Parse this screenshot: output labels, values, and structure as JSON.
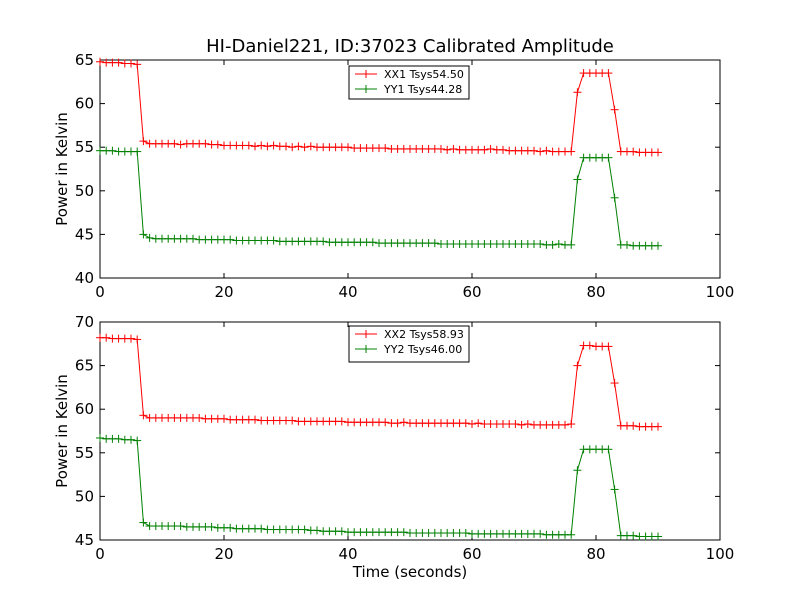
{
  "title": "HI-Daniel221, ID:37023 Calibrated Amplitude",
  "chart_data": [
    {
      "type": "line",
      "ylabel": "Power in Kelvin",
      "xlim": [
        0,
        100
      ],
      "ylim": [
        40,
        65
      ],
      "xticks": [
        0,
        20,
        40,
        60,
        80,
        100
      ],
      "yticks": [
        40,
        45,
        50,
        55,
        60,
        65
      ],
      "legend_position": "upper center",
      "series": [
        {
          "name": "XX1 Tsys54.50",
          "color": "#ff0000",
          "x": [
            0,
            1,
            2,
            3,
            4,
            5,
            6,
            7,
            8,
            9,
            10,
            11,
            12,
            13,
            14,
            15,
            16,
            17,
            18,
            19,
            20,
            21,
            22,
            23,
            24,
            25,
            26,
            27,
            28,
            29,
            30,
            31,
            32,
            33,
            34,
            35,
            36,
            37,
            38,
            39,
            40,
            41,
            42,
            43,
            44,
            45,
            46,
            47,
            48,
            49,
            50,
            51,
            52,
            53,
            54,
            55,
            56,
            57,
            58,
            59,
            60,
            61,
            62,
            63,
            64,
            65,
            66,
            67,
            68,
            69,
            70,
            71,
            72,
            73,
            74,
            75,
            76,
            77,
            78,
            79,
            80,
            81,
            82,
            83,
            84,
            85,
            86,
            87,
            88,
            89,
            90
          ],
          "y": [
            64.8,
            64.7,
            64.7,
            64.7,
            64.6,
            64.6,
            64.5,
            55.7,
            55.4,
            55.4,
            55.4,
            55.4,
            55.4,
            55.3,
            55.4,
            55.4,
            55.4,
            55.4,
            55.3,
            55.3,
            55.2,
            55.2,
            55.2,
            55.2,
            55.2,
            55.1,
            55.2,
            55.1,
            55.2,
            55.1,
            55.1,
            55.0,
            55.1,
            55.0,
            55.1,
            55.0,
            55.0,
            55.0,
            55.0,
            55.0,
            55.0,
            54.9,
            54.9,
            54.9,
            54.9,
            54.9,
            54.9,
            54.8,
            54.8,
            54.8,
            54.8,
            54.8,
            54.8,
            54.8,
            54.8,
            54.8,
            54.7,
            54.8,
            54.7,
            54.7,
            54.7,
            54.7,
            54.7,
            54.8,
            54.7,
            54.7,
            54.6,
            54.6,
            54.6,
            54.6,
            54.6,
            54.5,
            54.6,
            54.5,
            54.5,
            54.5,
            54.5,
            61.3,
            63.5,
            63.5,
            63.5,
            63.5,
            63.5,
            59.3,
            54.5,
            54.5,
            54.5,
            54.4,
            54.4,
            54.4,
            54.4
          ]
        },
        {
          "name": "YY1 Tsys44.28",
          "color": "#008000",
          "x": [
            0,
            1,
            2,
            3,
            4,
            5,
            6,
            7,
            8,
            9,
            10,
            11,
            12,
            13,
            14,
            15,
            16,
            17,
            18,
            19,
            20,
            21,
            22,
            23,
            24,
            25,
            26,
            27,
            28,
            29,
            30,
            31,
            32,
            33,
            34,
            35,
            36,
            37,
            38,
            39,
            40,
            41,
            42,
            43,
            44,
            45,
            46,
            47,
            48,
            49,
            50,
            51,
            52,
            53,
            54,
            55,
            56,
            57,
            58,
            59,
            60,
            61,
            62,
            63,
            64,
            65,
            66,
            67,
            68,
            69,
            70,
            71,
            72,
            73,
            74,
            75,
            76,
            77,
            78,
            79,
            80,
            81,
            82,
            83,
            84,
            85,
            86,
            87,
            88,
            89,
            90
          ],
          "y": [
            54.6,
            54.6,
            54.6,
            54.5,
            54.5,
            54.5,
            54.5,
            45.0,
            44.6,
            44.5,
            44.5,
            44.5,
            44.5,
            44.5,
            44.5,
            44.5,
            44.4,
            44.4,
            44.4,
            44.4,
            44.4,
            44.4,
            44.3,
            44.3,
            44.3,
            44.3,
            44.3,
            44.3,
            44.3,
            44.2,
            44.2,
            44.2,
            44.2,
            44.2,
            44.2,
            44.2,
            44.2,
            44.1,
            44.1,
            44.1,
            44.1,
            44.1,
            44.1,
            44.1,
            44.1,
            44.0,
            44.0,
            44.0,
            44.0,
            44.0,
            44.0,
            44.0,
            44.0,
            44.0,
            44.0,
            43.9,
            43.9,
            43.9,
            43.9,
            43.9,
            43.9,
            43.9,
            43.9,
            43.9,
            43.9,
            43.9,
            43.9,
            43.9,
            43.9,
            43.9,
            43.9,
            43.9,
            43.8,
            43.8,
            43.9,
            43.8,
            43.8,
            51.3,
            53.8,
            53.8,
            53.8,
            53.8,
            53.8,
            49.2,
            43.8,
            43.8,
            43.7,
            43.7,
            43.7,
            43.7,
            43.7
          ]
        }
      ]
    },
    {
      "type": "line",
      "xlabel": "Time (seconds)",
      "ylabel": "Power in Kelvin",
      "xlim": [
        0,
        100
      ],
      "ylim": [
        45,
        70
      ],
      "xticks": [
        0,
        20,
        40,
        60,
        80,
        100
      ],
      "yticks": [
        45,
        50,
        55,
        60,
        65,
        70
      ],
      "legend_position": "upper center",
      "series": [
        {
          "name": "XX2 Tsys58.93",
          "color": "#ff0000",
          "x": [
            0,
            1,
            2,
            3,
            4,
            5,
            6,
            7,
            8,
            9,
            10,
            11,
            12,
            13,
            14,
            15,
            16,
            17,
            18,
            19,
            20,
            21,
            22,
            23,
            24,
            25,
            26,
            27,
            28,
            29,
            30,
            31,
            32,
            33,
            34,
            35,
            36,
            37,
            38,
            39,
            40,
            41,
            42,
            43,
            44,
            45,
            46,
            47,
            48,
            49,
            50,
            51,
            52,
            53,
            54,
            55,
            56,
            57,
            58,
            59,
            60,
            61,
            62,
            63,
            64,
            65,
            66,
            67,
            68,
            69,
            70,
            71,
            72,
            73,
            74,
            75,
            76,
            77,
            78,
            79,
            80,
            81,
            82,
            83,
            84,
            85,
            86,
            87,
            88,
            89,
            90
          ],
          "y": [
            68.2,
            68.2,
            68.1,
            68.1,
            68.1,
            68.1,
            68.0,
            59.3,
            59.0,
            59.0,
            59.0,
            59.0,
            59.0,
            59.0,
            59.0,
            59.0,
            59.0,
            58.9,
            58.9,
            58.9,
            58.9,
            58.8,
            58.8,
            58.8,
            58.8,
            58.8,
            58.7,
            58.7,
            58.7,
            58.7,
            58.7,
            58.7,
            58.6,
            58.6,
            58.6,
            58.6,
            58.6,
            58.6,
            58.6,
            58.6,
            58.5,
            58.5,
            58.5,
            58.5,
            58.5,
            58.5,
            58.5,
            58.4,
            58.4,
            58.5,
            58.4,
            58.4,
            58.4,
            58.4,
            58.4,
            58.4,
            58.4,
            58.4,
            58.4,
            58.4,
            58.3,
            58.4,
            58.3,
            58.3,
            58.3,
            58.3,
            58.3,
            58.3,
            58.2,
            58.3,
            58.2,
            58.2,
            58.2,
            58.2,
            58.2,
            58.2,
            58.3,
            65.0,
            67.3,
            67.3,
            67.2,
            67.2,
            67.2,
            63.0,
            58.1,
            58.1,
            58.1,
            58.0,
            58.0,
            58.0,
            58.0
          ]
        },
        {
          "name": "YY2 Tsys46.00",
          "color": "#008000",
          "x": [
            0,
            1,
            2,
            3,
            4,
            5,
            6,
            7,
            8,
            9,
            10,
            11,
            12,
            13,
            14,
            15,
            16,
            17,
            18,
            19,
            20,
            21,
            22,
            23,
            24,
            25,
            26,
            27,
            28,
            29,
            30,
            31,
            32,
            33,
            34,
            35,
            36,
            37,
            38,
            39,
            40,
            41,
            42,
            43,
            44,
            45,
            46,
            47,
            48,
            49,
            50,
            51,
            52,
            53,
            54,
            55,
            56,
            57,
            58,
            59,
            60,
            61,
            62,
            63,
            64,
            65,
            66,
            67,
            68,
            69,
            70,
            71,
            72,
            73,
            74,
            75,
            76,
            77,
            78,
            79,
            80,
            81,
            82,
            83,
            84,
            85,
            86,
            87,
            88,
            89,
            90
          ],
          "y": [
            56.7,
            56.6,
            56.6,
            56.6,
            56.5,
            56.5,
            56.4,
            47.0,
            46.6,
            46.6,
            46.6,
            46.6,
            46.6,
            46.6,
            46.5,
            46.5,
            46.5,
            46.5,
            46.5,
            46.4,
            46.4,
            46.4,
            46.3,
            46.3,
            46.3,
            46.3,
            46.3,
            46.2,
            46.2,
            46.2,
            46.2,
            46.2,
            46.2,
            46.2,
            46.1,
            46.1,
            46.0,
            46.0,
            46.0,
            46.0,
            45.9,
            45.9,
            45.9,
            45.9,
            45.9,
            45.9,
            45.9,
            45.9,
            45.9,
            45.9,
            45.8,
            45.8,
            45.8,
            45.8,
            45.8,
            45.8,
            45.8,
            45.8,
            45.8,
            45.8,
            45.7,
            45.7,
            45.7,
            45.7,
            45.7,
            45.7,
            45.7,
            45.7,
            45.7,
            45.7,
            45.7,
            45.7,
            45.6,
            45.6,
            45.6,
            45.6,
            45.6,
            53.0,
            55.4,
            55.4,
            55.4,
            55.4,
            55.4,
            50.8,
            45.5,
            45.5,
            45.5,
            45.4,
            45.4,
            45.4,
            45.4
          ]
        }
      ]
    }
  ]
}
